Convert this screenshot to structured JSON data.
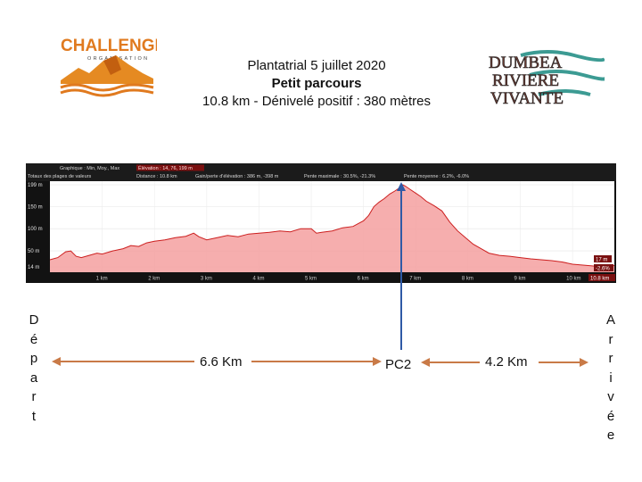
{
  "header": {
    "line1": "Plantatrial 5 juillet 2020",
    "line2": "Petit parcours",
    "line3": "10.8 km - Dénivelé positif : 380 mètres"
  },
  "logos": {
    "left_text": "CHALLENGE",
    "left_subtext": "ORGANISATION",
    "right_lines": [
      "DUMBEA",
      "RIVIERE",
      "VIVANTE"
    ]
  },
  "chart_data": {
    "type": "area",
    "summary": {
      "graph_label": "Graphique : Min, Moy., Max",
      "elevation_label": "Élévation : 14, 76, 199 m",
      "totals_label": "Totaux des plages de valeurs",
      "distance_label": "Distance : 10.8 km",
      "gain_label": "Gain/perte d'élévation : 386 m, -398 m",
      "slope_max_label": "Pente maximale : 30.5%, -21.3%",
      "slope_avg_label": "Pente moyenne : 6.2%, -6.0%"
    },
    "y_ticks": [
      {
        "label": "199 m",
        "value": 199
      },
      {
        "label": "150 m",
        "value": 150
      },
      {
        "label": "100 m",
        "value": 100
      },
      {
        "label": "50 m",
        "value": 50
      },
      {
        "label": "14 m",
        "value": 14
      }
    ],
    "x_ticks": [
      {
        "label": "1 km",
        "value": 1
      },
      {
        "label": "2 km",
        "value": 2
      },
      {
        "label": "3 km",
        "value": 3
      },
      {
        "label": "4 km",
        "value": 4
      },
      {
        "label": "5 km",
        "value": 5
      },
      {
        "label": "6 km",
        "value": 6
      },
      {
        "label": "7 km",
        "value": 7
      },
      {
        "label": "8 km",
        "value": 8
      },
      {
        "label": "9 km",
        "value": 9
      },
      {
        "label": "10 km",
        "value": 10
      }
    ],
    "xlim": [
      0,
      10.8
    ],
    "ylim": [
      14,
      199
    ],
    "end_labels": {
      "elevation": "17 m",
      "slope": "-2.6%",
      "distance": "10.8 km"
    },
    "x": [
      0,
      0.15,
      0.3,
      0.4,
      0.5,
      0.6,
      0.75,
      0.9,
      1.0,
      1.2,
      1.4,
      1.55,
      1.7,
      1.85,
      2.0,
      2.2,
      2.4,
      2.6,
      2.75,
      2.85,
      3.0,
      3.2,
      3.4,
      3.6,
      3.8,
      4.0,
      4.2,
      4.4,
      4.6,
      4.8,
      5.0,
      5.1,
      5.2,
      5.4,
      5.6,
      5.8,
      6.0,
      6.1,
      6.2,
      6.3,
      6.4,
      6.5,
      6.6,
      6.7,
      6.75,
      6.8,
      6.9,
      7.0,
      7.1,
      7.2,
      7.35,
      7.5,
      7.65,
      7.8,
      7.95,
      8.1,
      8.25,
      8.4,
      8.6,
      8.8,
      9.0,
      9.2,
      9.4,
      9.6,
      9.8,
      10.0,
      10.2,
      10.4,
      10.6,
      10.8
    ],
    "y": [
      30,
      35,
      48,
      50,
      38,
      35,
      40,
      45,
      43,
      50,
      55,
      62,
      60,
      68,
      72,
      75,
      80,
      83,
      90,
      82,
      75,
      80,
      85,
      82,
      88,
      90,
      92,
      95,
      93,
      100,
      100,
      90,
      92,
      95,
      102,
      105,
      118,
      130,
      150,
      160,
      168,
      178,
      185,
      193,
      199,
      196,
      188,
      180,
      172,
      162,
      152,
      140,
      115,
      95,
      80,
      65,
      55,
      45,
      40,
      38,
      35,
      32,
      30,
      28,
      25,
      20,
      18,
      16,
      15,
      17
    ],
    "marker": {
      "x": 6.8,
      "label": "PC2"
    }
  },
  "annotations": {
    "start": "Départ",
    "end": "Arrivée",
    "segment1": "6.6 Km",
    "checkpoint": "PC2",
    "segment2": "4.2 Km"
  },
  "colors": {
    "arrow": "#c97a47",
    "marker_line": "#2f5aa6",
    "fill": "#f4a0a0",
    "profile_line": "#cc1f1f",
    "frame": "#121212"
  }
}
